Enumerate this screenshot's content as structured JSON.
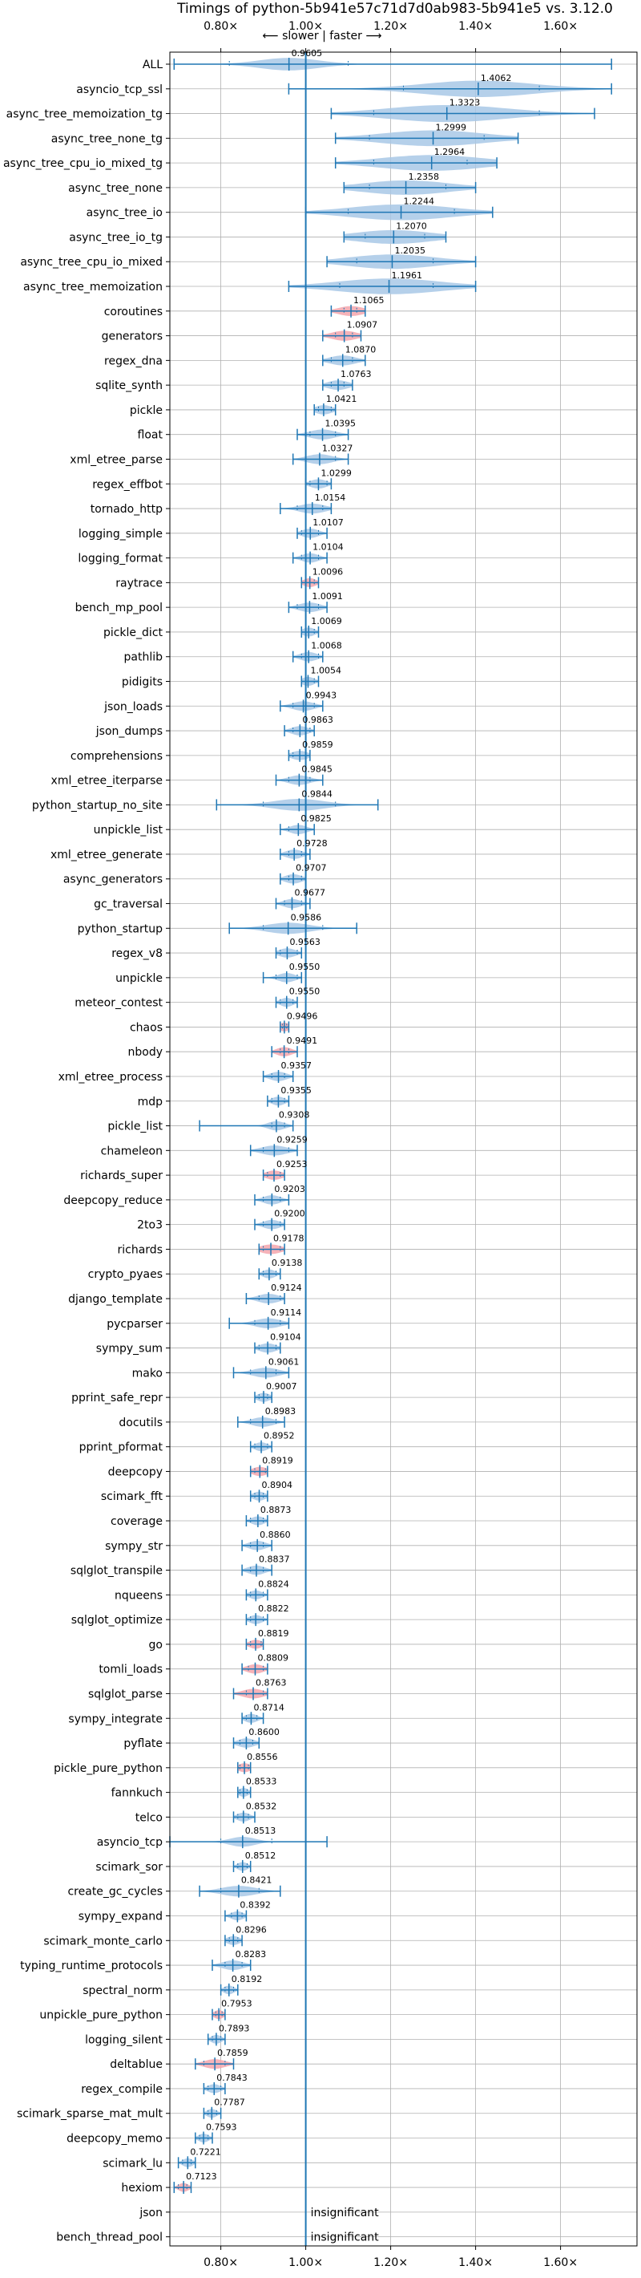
{
  "chart_data": {
    "type": "violin",
    "title": "Timings of python-5b941e57c71d7d0ab983-5b941e5 vs. 3.12.0",
    "direction_label": "⟵ slower | faster ⟶",
    "xlim": [
      0.68,
      1.78
    ],
    "x_ticks": [
      {
        "value": 0.8,
        "label": "0.80×"
      },
      {
        "value": 1.0,
        "label": "1.00×"
      },
      {
        "value": 1.2,
        "label": "1.20×"
      },
      {
        "value": 1.4,
        "label": "1.40×"
      },
      {
        "value": 1.6,
        "label": "1.60×"
      }
    ],
    "reference_x": 1.0,
    "colors": {
      "violin": "#a8c8e6",
      "violin_significant_slow": "#f4a6ad",
      "line": "#1f77b4",
      "grid": "#b0b0b0"
    },
    "insignificant_label": "insignificant",
    "benchmarks": [
      {
        "name": "ALL",
        "value": 0.9605,
        "min": 0.69,
        "max": 1.72,
        "q1": 0.82,
        "q3": 1.1,
        "spread": 0.07,
        "highlight": false
      },
      {
        "name": "asyncio_tcp_ssl",
        "value": 1.4062,
        "min": 0.96,
        "max": 1.72,
        "q1": 1.23,
        "q3": 1.55,
        "spread": 0.13,
        "highlight": false
      },
      {
        "name": "async_tree_memoization_tg",
        "value": 1.3323,
        "min": 1.06,
        "max": 1.68,
        "q1": 1.16,
        "q3": 1.55,
        "spread": 0.14,
        "highlight": false
      },
      {
        "name": "async_tree_none_tg",
        "value": 1.2999,
        "min": 1.07,
        "max": 1.5,
        "q1": 1.15,
        "q3": 1.42,
        "spread": 0.12,
        "highlight": false
      },
      {
        "name": "async_tree_cpu_io_mixed_tg",
        "value": 1.2964,
        "min": 1.07,
        "max": 1.45,
        "q1": 1.16,
        "q3": 1.38,
        "spread": 0.12,
        "highlight": false
      },
      {
        "name": "async_tree_none",
        "value": 1.2358,
        "min": 1.09,
        "max": 1.4,
        "q1": 1.15,
        "q3": 1.33,
        "spread": 0.1,
        "highlight": false
      },
      {
        "name": "async_tree_io",
        "value": 1.2244,
        "min": 1.0,
        "max": 1.44,
        "q1": 1.1,
        "q3": 1.35,
        "spread": 0.12,
        "highlight": false
      },
      {
        "name": "async_tree_io_tg",
        "value": 1.207,
        "min": 1.09,
        "max": 1.33,
        "q1": 1.14,
        "q3": 1.28,
        "spread": 0.09,
        "highlight": false
      },
      {
        "name": "async_tree_cpu_io_mixed",
        "value": 1.2035,
        "min": 1.05,
        "max": 1.4,
        "q1": 1.12,
        "q3": 1.3,
        "spread": 0.1,
        "highlight": false
      },
      {
        "name": "async_tree_memoization",
        "value": 1.1961,
        "min": 0.96,
        "max": 1.4,
        "q1": 1.08,
        "q3": 1.3,
        "spread": 0.12,
        "highlight": false
      },
      {
        "name": "coroutines",
        "value": 1.1065,
        "min": 1.06,
        "max": 1.14,
        "q1": 1.09,
        "q3": 1.12,
        "spread": 0.03,
        "highlight": true
      },
      {
        "name": "generators",
        "value": 1.0907,
        "min": 1.04,
        "max": 1.13,
        "q1": 1.07,
        "q3": 1.11,
        "spread": 0.03,
        "highlight": true
      },
      {
        "name": "regex_dna",
        "value": 1.087,
        "min": 1.04,
        "max": 1.14,
        "q1": 1.06,
        "q3": 1.11,
        "spread": 0.03,
        "highlight": false
      },
      {
        "name": "sqlite_synth",
        "value": 1.0763,
        "min": 1.04,
        "max": 1.11,
        "q1": 1.06,
        "q3": 1.09,
        "spread": 0.025,
        "highlight": false
      },
      {
        "name": "pickle",
        "value": 1.0421,
        "min": 1.02,
        "max": 1.07,
        "q1": 1.03,
        "q3": 1.06,
        "spread": 0.02,
        "highlight": false
      },
      {
        "name": "float",
        "value": 1.0395,
        "min": 0.98,
        "max": 1.1,
        "q1": 1.01,
        "q3": 1.07,
        "spread": 0.03,
        "highlight": false
      },
      {
        "name": "xml_etree_parse",
        "value": 1.0327,
        "min": 0.97,
        "max": 1.1,
        "q1": 1.0,
        "q3": 1.07,
        "spread": 0.03,
        "highlight": false
      },
      {
        "name": "regex_effbot",
        "value": 1.0299,
        "min": 1.0,
        "max": 1.06,
        "q1": 1.01,
        "q3": 1.05,
        "spread": 0.02,
        "highlight": false
      },
      {
        "name": "tornado_http",
        "value": 1.0154,
        "min": 0.94,
        "max": 1.06,
        "q1": 0.98,
        "q3": 1.04,
        "spread": 0.03,
        "highlight": false
      },
      {
        "name": "logging_simple",
        "value": 1.0107,
        "min": 0.98,
        "max": 1.05,
        "q1": 0.99,
        "q3": 1.03,
        "spread": 0.02,
        "highlight": false
      },
      {
        "name": "logging_format",
        "value": 1.0104,
        "min": 0.97,
        "max": 1.05,
        "q1": 0.99,
        "q3": 1.03,
        "spread": 0.02,
        "highlight": false
      },
      {
        "name": "raytrace",
        "value": 1.0096,
        "min": 0.99,
        "max": 1.03,
        "q1": 1.0,
        "q3": 1.02,
        "spread": 0.015,
        "highlight": true
      },
      {
        "name": "bench_mp_pool",
        "value": 1.0091,
        "min": 0.96,
        "max": 1.05,
        "q1": 0.98,
        "q3": 1.03,
        "spread": 0.025,
        "highlight": false
      },
      {
        "name": "pickle_dict",
        "value": 1.0069,
        "min": 0.99,
        "max": 1.03,
        "q1": 1.0,
        "q3": 1.02,
        "spread": 0.015,
        "highlight": false
      },
      {
        "name": "pathlib",
        "value": 1.0068,
        "min": 0.97,
        "max": 1.04,
        "q1": 0.99,
        "q3": 1.03,
        "spread": 0.02,
        "highlight": false
      },
      {
        "name": "pidigits",
        "value": 1.0054,
        "min": 0.99,
        "max": 1.03,
        "q1": 1.0,
        "q3": 1.02,
        "spread": 0.015,
        "highlight": false
      },
      {
        "name": "json_loads",
        "value": 0.9943,
        "min": 0.94,
        "max": 1.04,
        "q1": 0.97,
        "q3": 1.02,
        "spread": 0.025,
        "highlight": false
      },
      {
        "name": "json_dumps",
        "value": 0.9863,
        "min": 0.95,
        "max": 1.02,
        "q1": 0.97,
        "q3": 1.01,
        "spread": 0.02,
        "highlight": false
      },
      {
        "name": "comprehensions",
        "value": 0.9859,
        "min": 0.96,
        "max": 1.01,
        "q1": 0.97,
        "q3": 1.0,
        "spread": 0.02,
        "highlight": false
      },
      {
        "name": "xml_etree_iterparse",
        "value": 0.9845,
        "min": 0.93,
        "max": 1.04,
        "q1": 0.96,
        "q3": 1.01,
        "spread": 0.025,
        "highlight": false
      },
      {
        "name": "python_startup_no_site",
        "value": 0.9844,
        "min": 0.79,
        "max": 1.17,
        "q1": 0.9,
        "q3": 1.07,
        "spread": 0.06,
        "highlight": false
      },
      {
        "name": "unpickle_list",
        "value": 0.9825,
        "min": 0.94,
        "max": 1.02,
        "q1": 0.96,
        "q3": 1.0,
        "spread": 0.02,
        "highlight": false
      },
      {
        "name": "xml_etree_generate",
        "value": 0.9728,
        "min": 0.94,
        "max": 1.01,
        "q1": 0.96,
        "q3": 0.99,
        "spread": 0.02,
        "highlight": false
      },
      {
        "name": "async_generators",
        "value": 0.9707,
        "min": 0.94,
        "max": 1.0,
        "q1": 0.96,
        "q3": 0.99,
        "spread": 0.02,
        "highlight": false
      },
      {
        "name": "gc_traversal",
        "value": 0.9677,
        "min": 0.93,
        "max": 1.01,
        "q1": 0.95,
        "q3": 0.99,
        "spread": 0.02,
        "highlight": false
      },
      {
        "name": "python_startup",
        "value": 0.9586,
        "min": 0.82,
        "max": 1.12,
        "q1": 0.9,
        "q3": 1.04,
        "spread": 0.05,
        "highlight": false
      },
      {
        "name": "regex_v8",
        "value": 0.9563,
        "min": 0.93,
        "max": 0.99,
        "q1": 0.94,
        "q3": 0.98,
        "spread": 0.02,
        "highlight": false
      },
      {
        "name": "unpickle",
        "value": 0.955,
        "min": 0.9,
        "max": 0.99,
        "q1": 0.93,
        "q3": 0.98,
        "spread": 0.02,
        "highlight": false
      },
      {
        "name": "meteor_contest",
        "value": 0.955,
        "min": 0.93,
        "max": 0.98,
        "q1": 0.94,
        "q3": 0.97,
        "spread": 0.015,
        "highlight": false
      },
      {
        "name": "chaos",
        "value": 0.9496,
        "min": 0.94,
        "max": 0.96,
        "q1": 0.945,
        "q3": 0.955,
        "spread": 0.012,
        "highlight": true
      },
      {
        "name": "nbody",
        "value": 0.9491,
        "min": 0.92,
        "max": 0.98,
        "q1": 0.94,
        "q3": 0.96,
        "spread": 0.018,
        "highlight": true
      },
      {
        "name": "xml_etree_process",
        "value": 0.9357,
        "min": 0.9,
        "max": 0.97,
        "q1": 0.92,
        "q3": 0.95,
        "spread": 0.02,
        "highlight": false
      },
      {
        "name": "mdp",
        "value": 0.9355,
        "min": 0.91,
        "max": 0.96,
        "q1": 0.92,
        "q3": 0.95,
        "spread": 0.015,
        "highlight": false
      },
      {
        "name": "pickle_list",
        "value": 0.9308,
        "min": 0.75,
        "max": 0.97,
        "q1": 0.92,
        "q3": 0.95,
        "spread": 0.02,
        "highlight": false
      },
      {
        "name": "chameleon",
        "value": 0.9259,
        "min": 0.87,
        "max": 0.98,
        "q1": 0.9,
        "q3": 0.96,
        "spread": 0.03,
        "highlight": false
      },
      {
        "name": "richards_super",
        "value": 0.9253,
        "min": 0.9,
        "max": 0.95,
        "q1": 0.91,
        "q3": 0.94,
        "spread": 0.02,
        "highlight": true
      },
      {
        "name": "deepcopy_reduce",
        "value": 0.9203,
        "min": 0.88,
        "max": 0.96,
        "q1": 0.9,
        "q3": 0.94,
        "spread": 0.02,
        "highlight": false
      },
      {
        "name": "2to3",
        "value": 0.92,
        "min": 0.88,
        "max": 0.95,
        "q1": 0.9,
        "q3": 0.94,
        "spread": 0.02,
        "highlight": false
      },
      {
        "name": "richards",
        "value": 0.9178,
        "min": 0.89,
        "max": 0.95,
        "q1": 0.9,
        "q3": 0.94,
        "spread": 0.025,
        "highlight": true
      },
      {
        "name": "crypto_pyaes",
        "value": 0.9138,
        "min": 0.89,
        "max": 0.94,
        "q1": 0.9,
        "q3": 0.93,
        "spread": 0.015,
        "highlight": false
      },
      {
        "name": "django_template",
        "value": 0.9124,
        "min": 0.86,
        "max": 0.95,
        "q1": 0.89,
        "q3": 0.94,
        "spread": 0.025,
        "highlight": false
      },
      {
        "name": "pycparser",
        "value": 0.9114,
        "min": 0.82,
        "max": 0.96,
        "q1": 0.88,
        "q3": 0.94,
        "spread": 0.03,
        "highlight": false
      },
      {
        "name": "sympy_sum",
        "value": 0.9104,
        "min": 0.88,
        "max": 0.94,
        "q1": 0.89,
        "q3": 0.93,
        "spread": 0.02,
        "highlight": false
      },
      {
        "name": "mako",
        "value": 0.9061,
        "min": 0.83,
        "max": 0.96,
        "q1": 0.87,
        "q3": 0.93,
        "spread": 0.03,
        "highlight": false
      },
      {
        "name": "pprint_safe_repr",
        "value": 0.9007,
        "min": 0.88,
        "max": 0.92,
        "q1": 0.89,
        "q3": 0.91,
        "spread": 0.015,
        "highlight": false
      },
      {
        "name": "docutils",
        "value": 0.8983,
        "min": 0.84,
        "max": 0.95,
        "q1": 0.87,
        "q3": 0.93,
        "spread": 0.025,
        "highlight": false
      },
      {
        "name": "pprint_pformat",
        "value": 0.8952,
        "min": 0.87,
        "max": 0.92,
        "q1": 0.88,
        "q3": 0.91,
        "spread": 0.015,
        "highlight": false
      },
      {
        "name": "deepcopy",
        "value": 0.8919,
        "min": 0.87,
        "max": 0.91,
        "q1": 0.88,
        "q3": 0.905,
        "spread": 0.018,
        "highlight": true
      },
      {
        "name": "scimark_fft",
        "value": 0.8904,
        "min": 0.87,
        "max": 0.91,
        "q1": 0.88,
        "q3": 0.9,
        "spread": 0.015,
        "highlight": false
      },
      {
        "name": "coverage",
        "value": 0.8873,
        "min": 0.86,
        "max": 0.91,
        "q1": 0.87,
        "q3": 0.9,
        "spread": 0.015,
        "highlight": false
      },
      {
        "name": "sympy_str",
        "value": 0.886,
        "min": 0.85,
        "max": 0.92,
        "q1": 0.87,
        "q3": 0.9,
        "spread": 0.02,
        "highlight": false
      },
      {
        "name": "sqlglot_transpile",
        "value": 0.8837,
        "min": 0.85,
        "max": 0.92,
        "q1": 0.87,
        "q3": 0.9,
        "spread": 0.02,
        "highlight": false
      },
      {
        "name": "nqueens",
        "value": 0.8824,
        "min": 0.86,
        "max": 0.91,
        "q1": 0.87,
        "q3": 0.9,
        "spread": 0.015,
        "highlight": false
      },
      {
        "name": "sqlglot_optimize",
        "value": 0.8822,
        "min": 0.86,
        "max": 0.91,
        "q1": 0.87,
        "q3": 0.9,
        "spread": 0.015,
        "highlight": false
      },
      {
        "name": "go",
        "value": 0.8819,
        "min": 0.86,
        "max": 0.9,
        "q1": 0.87,
        "q3": 0.895,
        "spread": 0.015,
        "highlight": true
      },
      {
        "name": "tomli_loads",
        "value": 0.8809,
        "min": 0.85,
        "max": 0.91,
        "q1": 0.865,
        "q3": 0.9,
        "spread": 0.02,
        "highlight": true
      },
      {
        "name": "sqlglot_parse",
        "value": 0.8763,
        "min": 0.83,
        "max": 0.91,
        "q1": 0.86,
        "q3": 0.9,
        "spread": 0.025,
        "highlight": true
      },
      {
        "name": "sympy_integrate",
        "value": 0.8714,
        "min": 0.85,
        "max": 0.9,
        "q1": 0.86,
        "q3": 0.885,
        "spread": 0.015,
        "highlight": false
      },
      {
        "name": "pyflate",
        "value": 0.86,
        "min": 0.83,
        "max": 0.89,
        "q1": 0.845,
        "q3": 0.875,
        "spread": 0.02,
        "highlight": false
      },
      {
        "name": "pickle_pure_python",
        "value": 0.8556,
        "min": 0.84,
        "max": 0.87,
        "q1": 0.845,
        "q3": 0.865,
        "spread": 0.015,
        "highlight": true
      },
      {
        "name": "fannkuch",
        "value": 0.8533,
        "min": 0.84,
        "max": 0.87,
        "q1": 0.845,
        "q3": 0.862,
        "spread": 0.012,
        "highlight": false
      },
      {
        "name": "telco",
        "value": 0.8532,
        "min": 0.83,
        "max": 0.88,
        "q1": 0.84,
        "q3": 0.865,
        "spread": 0.015,
        "highlight": false
      },
      {
        "name": "asyncio_tcp",
        "value": 0.8513,
        "min": 0.68,
        "max": 1.05,
        "q1": 0.8,
        "q3": 0.92,
        "spread": 0.03,
        "highlight": false
      },
      {
        "name": "scimark_sor",
        "value": 0.8512,
        "min": 0.83,
        "max": 0.87,
        "q1": 0.84,
        "q3": 0.862,
        "spread": 0.012,
        "highlight": false
      },
      {
        "name": "create_gc_cycles",
        "value": 0.8421,
        "min": 0.75,
        "max": 0.94,
        "q1": 0.8,
        "q3": 0.89,
        "spread": 0.04,
        "highlight": false
      },
      {
        "name": "sympy_expand",
        "value": 0.8392,
        "min": 0.81,
        "max": 0.86,
        "q1": 0.825,
        "q3": 0.85,
        "spread": 0.015,
        "highlight": false
      },
      {
        "name": "scimark_monte_carlo",
        "value": 0.8296,
        "min": 0.81,
        "max": 0.85,
        "q1": 0.82,
        "q3": 0.84,
        "spread": 0.015,
        "highlight": false
      },
      {
        "name": "typing_runtime_protocols",
        "value": 0.8283,
        "min": 0.78,
        "max": 0.87,
        "q1": 0.81,
        "q3": 0.85,
        "spread": 0.025,
        "highlight": false
      },
      {
        "name": "spectral_norm",
        "value": 0.8192,
        "min": 0.8,
        "max": 0.84,
        "q1": 0.81,
        "q3": 0.83,
        "spread": 0.012,
        "highlight": false
      },
      {
        "name": "unpickle_pure_python",
        "value": 0.7953,
        "min": 0.78,
        "max": 0.81,
        "q1": 0.788,
        "q3": 0.803,
        "spread": 0.012,
        "highlight": true
      },
      {
        "name": "logging_silent",
        "value": 0.7893,
        "min": 0.77,
        "max": 0.81,
        "q1": 0.78,
        "q3": 0.8,
        "spread": 0.012,
        "highlight": false
      },
      {
        "name": "deltablue",
        "value": 0.7859,
        "min": 0.74,
        "max": 0.83,
        "q1": 0.76,
        "q3": 0.81,
        "spread": 0.025,
        "highlight": true
      },
      {
        "name": "regex_compile",
        "value": 0.7843,
        "min": 0.76,
        "max": 0.81,
        "q1": 0.77,
        "q3": 0.8,
        "spread": 0.015,
        "highlight": false
      },
      {
        "name": "scimark_sparse_mat_mult",
        "value": 0.7787,
        "min": 0.76,
        "max": 0.8,
        "q1": 0.77,
        "q3": 0.79,
        "spread": 0.012,
        "highlight": false
      },
      {
        "name": "deepcopy_memo",
        "value": 0.7593,
        "min": 0.74,
        "max": 0.78,
        "q1": 0.75,
        "q3": 0.77,
        "spread": 0.012,
        "highlight": false
      },
      {
        "name": "scimark_lu",
        "value": 0.7221,
        "min": 0.7,
        "max": 0.74,
        "q1": 0.71,
        "q3": 0.73,
        "spread": 0.012,
        "highlight": false
      },
      {
        "name": "hexiom",
        "value": 0.7123,
        "min": 0.69,
        "max": 0.73,
        "q1": 0.7,
        "q3": 0.72,
        "spread": 0.012,
        "highlight": true
      },
      {
        "name": "json",
        "value": null,
        "insignificant": true
      },
      {
        "name": "bench_thread_pool",
        "value": null,
        "insignificant": true
      }
    ]
  }
}
